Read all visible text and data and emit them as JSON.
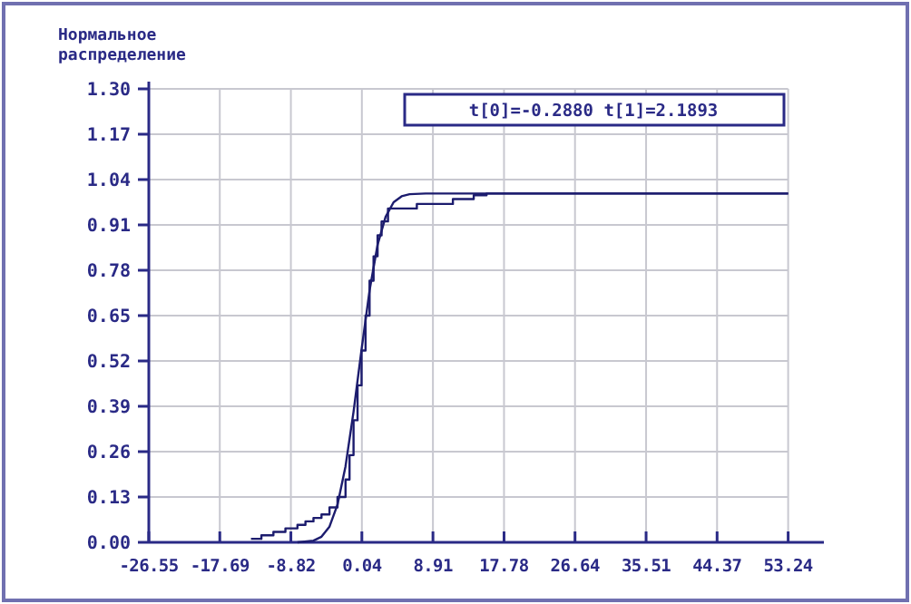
{
  "chart_data": {
    "type": "line",
    "ylabel": "Нормальное распределение",
    "annotations": [
      "t[0]=-0.2880 t[1]=2.1893"
    ],
    "xlim": [
      -26.55,
      57.7
    ],
    "ylim": [
      0,
      1.3
    ],
    "xticks": [
      -26.55,
      -17.69,
      -8.82,
      0.04,
      8.91,
      17.78,
      26.64,
      35.51,
      44.37,
      53.24
    ],
    "yticks": [
      {
        "value": 0,
        "label": "0.00"
      },
      {
        "value": 0.13,
        "label": "0.13"
      },
      {
        "value": 0.26,
        "label": "0.26"
      },
      {
        "value": 0.39,
        "label": "0.39"
      },
      {
        "value": 0.52,
        "label": "0.52"
      },
      {
        "value": 0.65,
        "label": "0.65"
      },
      {
        "value": 0.78,
        "label": "0.78"
      },
      {
        "value": 0.91,
        "label": "0.91"
      },
      {
        "value": 1.04,
        "label": "1.04"
      },
      {
        "value": 1.17,
        "label": "1.17"
      },
      {
        "value": 1.3,
        "label": "1.30"
      }
    ],
    "grid": true,
    "marker": "none",
    "line_style": "solid",
    "series": [
      {
        "color": "#1c1c6e",
        "x": [
          -8,
          -6,
          -5,
          -4,
          -3,
          -2,
          -1,
          0,
          1,
          2,
          3,
          4,
          5,
          6,
          8,
          53.24
        ],
        "values": [
          0,
          0.005,
          0.016,
          0.045,
          0.108,
          0.218,
          0.374,
          0.553,
          0.722,
          0.853,
          0.933,
          0.975,
          0.992,
          0.998,
          1.0,
          1.0
        ]
      },
      {
        "type": "step",
        "color": "#1c1c6e",
        "x": [
          -13.8,
          -12.5,
          -11,
          -9.5,
          -8,
          -7,
          -6,
          -5,
          -4,
          -3,
          -2,
          -1.5,
          -1,
          -0.5,
          0,
          0.5,
          1,
          1.5,
          2,
          2.5,
          3.3,
          6.9,
          11.4,
          14,
          15.6,
          53.24
        ],
        "values": [
          0.01,
          0.02,
          0.03,
          0.04,
          0.05,
          0.06,
          0.07,
          0.08,
          0.1,
          0.13,
          0.18,
          0.25,
          0.35,
          0.45,
          0.55,
          0.65,
          0.75,
          0.82,
          0.88,
          0.92,
          0.957,
          0.97,
          0.984,
          0.995,
          1.0,
          1.0
        ]
      }
    ]
  }
}
